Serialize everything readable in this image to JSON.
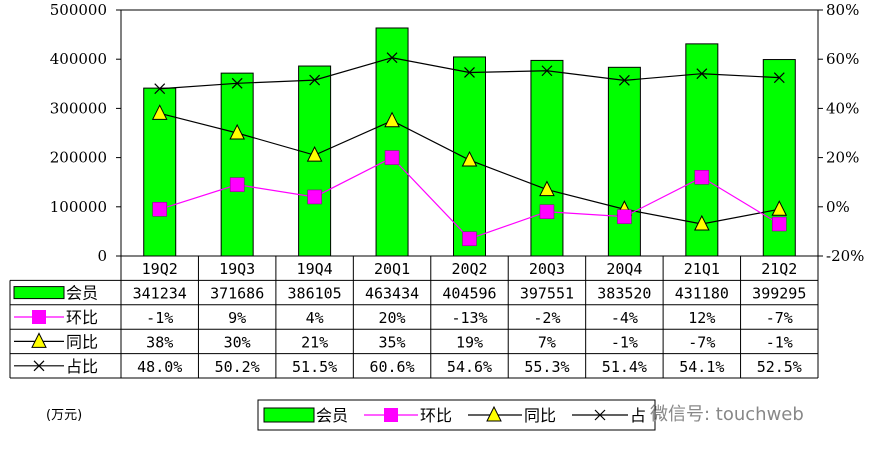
{
  "chart_data": {
    "type": "bar",
    "categories": [
      "19Q2",
      "19Q3",
      "19Q4",
      "20Q1",
      "20Q2",
      "20Q3",
      "20Q4",
      "21Q1",
      "21Q2"
    ],
    "series": [
      {
        "name": "会员",
        "type": "bar",
        "axis": "left",
        "values": [
          341234,
          371686,
          386105,
          463434,
          404596,
          397551,
          383520,
          431180,
          399295
        ],
        "color": "#00ff00",
        "labels": [
          "341234",
          "371686",
          "386105",
          "463434",
          "404596",
          "397551",
          "383520",
          "431180",
          "399295"
        ]
      },
      {
        "name": "环比",
        "type": "line",
        "axis": "right",
        "values": [
          -1,
          9,
          4,
          20,
          -13,
          -2,
          -4,
          12,
          -7
        ],
        "color": "#ff00ff",
        "labels": [
          "-1%",
          "9%",
          "4%",
          "20%",
          "-13%",
          "-2%",
          "-4%",
          "12%",
          "-7%"
        ]
      },
      {
        "name": "同比",
        "type": "line",
        "axis": "right",
        "values": [
          38,
          30,
          21,
          35,
          19,
          7,
          -1,
          -7,
          -1
        ],
        "color": "#000000",
        "labels": [
          "38%",
          "30%",
          "21%",
          "35%",
          "19%",
          "7%",
          "-1%",
          "-7%",
          "-1%"
        ]
      },
      {
        "name": "占比",
        "type": "line",
        "axis": "right",
        "values": [
          48.0,
          50.2,
          51.5,
          60.6,
          54.6,
          55.3,
          51.4,
          54.1,
          52.5
        ],
        "color": "#000000",
        "labels": [
          "48.0%",
          "50.2%",
          "51.5%",
          "60.6%",
          "54.6%",
          "55.3%",
          "51.4%",
          "54.1%",
          "52.5%"
        ]
      }
    ],
    "ylim": [
      0,
      500000
    ],
    "y2lim": [
      -20,
      80
    ],
    "yticks": [
      "0",
      "100000",
      "200000",
      "300000",
      "400000",
      "500000"
    ],
    "y2ticks": [
      "-20%",
      "0%",
      "20%",
      "40%",
      "60%",
      "80%"
    ],
    "unit_label": "(万元)",
    "legend": [
      "会员",
      "环比",
      "同比",
      "占"
    ],
    "legend_position": "bottom",
    "grid": false
  },
  "watermark": "微信号: touchweb"
}
